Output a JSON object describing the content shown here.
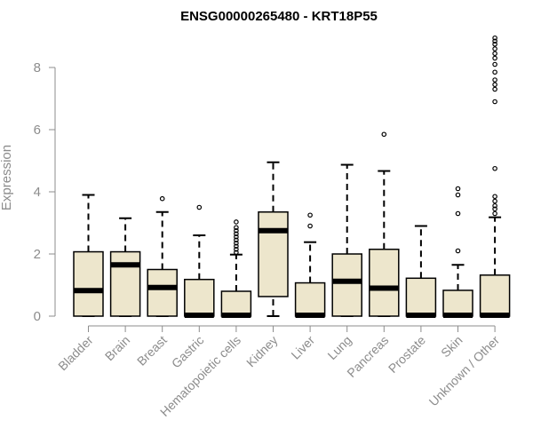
{
  "chart_data": {
    "type": "boxplot",
    "title": "ENSG00000265480 - KRT18P55",
    "xlabel": "",
    "ylabel": "Expression",
    "ylim": [
      0,
      9
    ],
    "yticks": [
      0,
      2,
      4,
      6,
      8
    ],
    "grid": false,
    "box_fill": "#ede6cc",
    "categories": [
      "Bladder",
      "Brain",
      "Breast",
      "Gastric",
      "Hematopoietic cells",
      "Kidney",
      "Liver",
      "Lung",
      "Pancreas",
      "Prostate",
      "Skin",
      "Unknown / Other"
    ],
    "series": [
      {
        "boxes": [
          {
            "min": 0,
            "q1": 0,
            "median": 0.82,
            "q3": 2.07,
            "max": 3.9,
            "outliers": []
          },
          {
            "min": 0,
            "q1": 0,
            "median": 1.65,
            "q3": 2.07,
            "max": 3.15,
            "outliers": []
          },
          {
            "min": 0,
            "q1": 0,
            "median": 0.92,
            "q3": 1.5,
            "max": 3.35,
            "outliers": [
              3.78
            ]
          },
          {
            "min": 0,
            "q1": 0,
            "median": 0.03,
            "q3": 1.18,
            "max": 2.6,
            "outliers": [
              3.5
            ]
          },
          {
            "min": 0,
            "q1": 0,
            "median": 0.03,
            "q3": 0.8,
            "max": 1.98,
            "outliers": [
              2.05,
              2.15,
              2.25,
              2.35,
              2.45,
              2.55,
              2.65,
              2.75,
              2.85,
              3.03
            ]
          },
          {
            "min": 0,
            "q1": 0.63,
            "median": 2.75,
            "q3": 3.35,
            "max": 4.95,
            "outliers": []
          },
          {
            "min": 0,
            "q1": 0,
            "median": 0.03,
            "q3": 1.07,
            "max": 2.38,
            "outliers": [
              2.9,
              3.25
            ]
          },
          {
            "min": 0,
            "q1": 0,
            "median": 1.12,
            "q3": 2.0,
            "max": 4.87,
            "outliers": []
          },
          {
            "min": 0,
            "q1": 0,
            "median": 0.9,
            "q3": 2.15,
            "max": 4.67,
            "outliers": [
              5.85
            ]
          },
          {
            "min": 0,
            "q1": 0,
            "median": 0.03,
            "q3": 1.22,
            "max": 2.9,
            "outliers": []
          },
          {
            "min": 0,
            "q1": 0,
            "median": 0.03,
            "q3": 0.83,
            "max": 1.65,
            "outliers": [
              2.1,
              3.3,
              3.9,
              4.1
            ]
          },
          {
            "min": 0,
            "q1": 0,
            "median": 0.03,
            "q3": 1.32,
            "max": 3.18,
            "outliers": [
              3.3,
              3.45,
              3.55,
              3.7,
              3.85,
              4.75,
              6.9,
              7.3,
              7.45,
              7.6,
              7.85,
              8.1,
              8.3,
              8.45,
              8.6,
              8.75,
              8.85,
              8.95
            ]
          }
        ]
      }
    ]
  }
}
